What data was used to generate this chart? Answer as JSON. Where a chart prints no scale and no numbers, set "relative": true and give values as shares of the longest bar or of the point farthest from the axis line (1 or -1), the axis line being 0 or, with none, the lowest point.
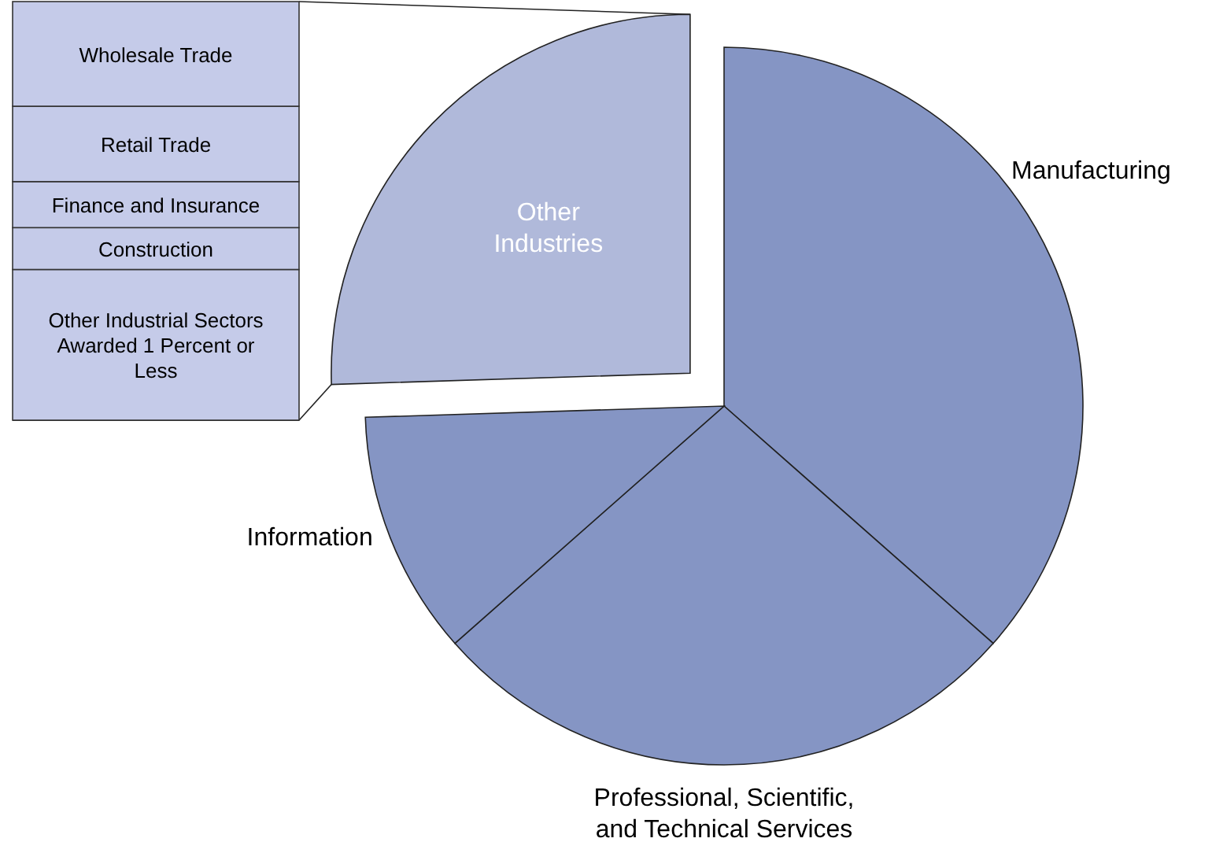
{
  "chart_data": [
    {
      "type": "pie",
      "categories": [
        "Manufacturing",
        "Professional, Scientific, and Technical Services",
        "Information",
        "Other Industries"
      ],
      "values": [
        36.5,
        27,
        11,
        25.5
      ],
      "colors": [
        "#8595c4",
        "#8595c4",
        "#8595c4",
        "#b0b9da"
      ]
    },
    {
      "type": "bar",
      "stacked": true,
      "relative": true,
      "categories": [
        null
      ],
      "series": [
        {
          "name": "Other Industrial Sectors Awarded 1 Percent or Less",
          "color": "#c5cbe9",
          "values": [
            0.36
          ]
        },
        {
          "name": "Construction",
          "color": "#c5cbe9",
          "values": [
            0.1
          ]
        },
        {
          "name": "Finance and Insurance",
          "color": "#c5cbe9",
          "values": [
            0.11
          ]
        },
        {
          "name": "Retail Trade",
          "color": "#c5cbe9",
          "values": [
            0.18
          ]
        },
        {
          "name": "Wholesale Trade",
          "color": "#c5cbe9",
          "values": [
            0.25
          ]
        }
      ]
    }
  ]
}
